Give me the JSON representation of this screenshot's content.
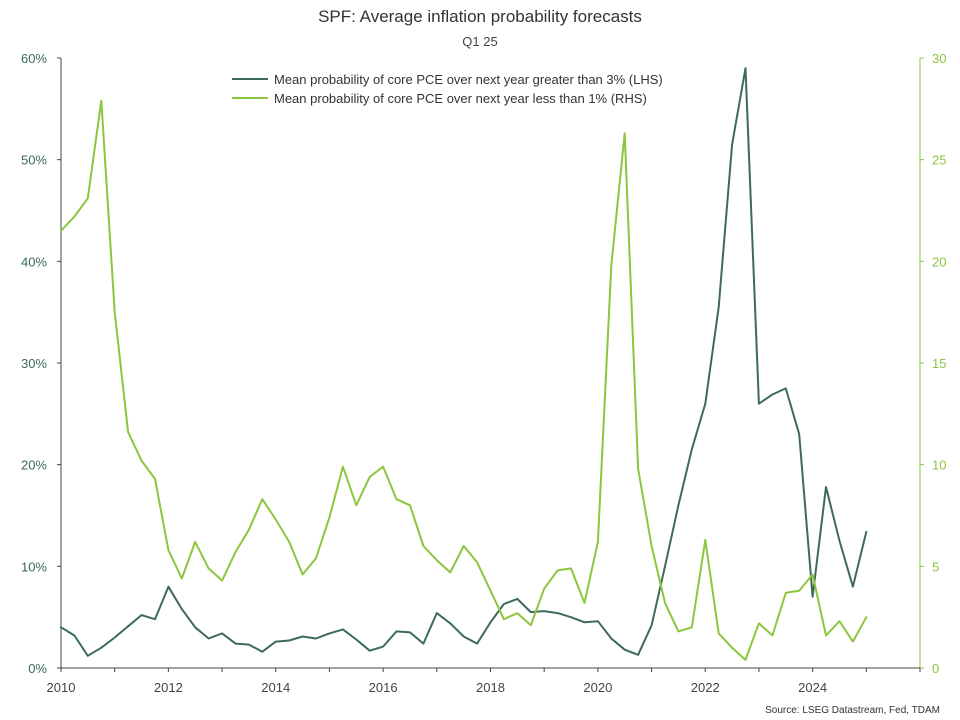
{
  "chart_data": {
    "type": "line",
    "title": "SPF: Average inflation probability forecasts",
    "subtitle": "Q1 25",
    "source": "Source: LSEG Datastream, Fed, TDAM",
    "xlim": [
      2010,
      2026
    ],
    "x_ticks": [
      "2010",
      "2012",
      "2014",
      "2016",
      "2018",
      "2020",
      "2022",
      "2024"
    ],
    "y_left": {
      "ylim": [
        0,
        60
      ],
      "ticks": [
        "0%",
        "10%",
        "20%",
        "30%",
        "40%",
        "50%",
        "60%"
      ],
      "color": "#3a6b5a"
    },
    "y_right": {
      "ylim": [
        0,
        30
      ],
      "ticks": [
        "0",
        "5",
        "10",
        "15",
        "20",
        "25",
        "30"
      ],
      "color": "#8cc63f"
    },
    "grid": false,
    "legend_position": "top-center",
    "series": [
      {
        "name": "Mean probability of core PCE over next year greater than 3% (LHS)",
        "axis": "left",
        "color": "#3d6b58",
        "x": [
          2010.0,
          2010.25,
          2010.5,
          2010.75,
          2011.0,
          2011.25,
          2011.5,
          2011.75,
          2012.0,
          2012.25,
          2012.5,
          2012.75,
          2013.0,
          2013.25,
          2013.5,
          2013.75,
          2014.0,
          2014.25,
          2014.5,
          2014.75,
          2015.0,
          2015.25,
          2015.5,
          2015.75,
          2016.0,
          2016.25,
          2016.5,
          2016.75,
          2017.0,
          2017.25,
          2017.5,
          2017.75,
          2018.0,
          2018.25,
          2018.5,
          2018.75,
          2019.0,
          2019.25,
          2019.5,
          2019.75,
          2020.0,
          2020.25,
          2020.5,
          2020.75,
          2021.0,
          2021.25,
          2021.5,
          2021.75,
          2022.0,
          2022.25,
          2022.5,
          2022.75,
          2023.0,
          2023.25,
          2023.5,
          2023.75,
          2024.0,
          2024.25,
          2024.5,
          2024.75,
          2025.0
        ],
        "values": [
          4.0,
          3.2,
          1.2,
          2.0,
          3.0,
          4.1,
          5.2,
          4.8,
          8.0,
          5.8,
          4.0,
          2.9,
          3.4,
          2.4,
          2.3,
          1.6,
          2.6,
          2.7,
          3.1,
          2.9,
          3.4,
          3.8,
          2.8,
          1.7,
          2.1,
          3.6,
          3.5,
          2.4,
          5.4,
          4.4,
          3.1,
          2.4,
          4.5,
          6.3,
          6.8,
          5.5,
          5.6,
          5.4,
          5.0,
          4.5,
          4.6,
          2.9,
          1.8,
          1.3,
          4.2,
          10.0,
          16.0,
          21.5,
          26.0,
          35.5,
          51.5,
          59.0,
          26.0,
          26.9,
          27.5,
          23.0,
          7.0,
          17.8,
          12.5,
          8.0,
          13.4
        ]
      },
      {
        "name": "Mean probability of core PCE over next year less than 1% (RHS)",
        "axis": "right",
        "color": "#8cc63f",
        "x": [
          2010.0,
          2010.25,
          2010.5,
          2010.75,
          2011.0,
          2011.25,
          2011.5,
          2011.75,
          2012.0,
          2012.25,
          2012.5,
          2012.75,
          2013.0,
          2013.25,
          2013.5,
          2013.75,
          2014.0,
          2014.25,
          2014.5,
          2014.75,
          2015.0,
          2015.25,
          2015.5,
          2015.75,
          2016.0,
          2016.25,
          2016.5,
          2016.75,
          2017.0,
          2017.25,
          2017.5,
          2017.75,
          2018.0,
          2018.25,
          2018.5,
          2018.75,
          2019.0,
          2019.25,
          2019.5,
          2019.75,
          2020.0,
          2020.25,
          2020.5,
          2020.75,
          2021.0,
          2021.25,
          2021.5,
          2021.75,
          2022.0,
          2022.25,
          2022.5,
          2022.75,
          2023.0,
          2023.25,
          2023.5,
          2023.75,
          2024.0,
          2024.25,
          2024.5,
          2024.75,
          2025.0
        ],
        "values": [
          21.5,
          22.2,
          23.1,
          27.9,
          17.5,
          11.6,
          10.2,
          9.3,
          5.8,
          4.4,
          6.2,
          4.9,
          4.3,
          5.7,
          6.8,
          8.3,
          7.3,
          6.2,
          4.6,
          5.4,
          7.4,
          9.9,
          8.0,
          9.4,
          9.9,
          8.3,
          8.0,
          6.0,
          5.3,
          4.7,
          6.0,
          5.2,
          3.8,
          2.4,
          2.7,
          2.1,
          3.9,
          4.8,
          4.9,
          3.2,
          6.2,
          19.8,
          26.3,
          9.8,
          6.0,
          3.2,
          1.8,
          2.0,
          6.3,
          1.7,
          1.0,
          0.4,
          2.2,
          1.6,
          3.7,
          3.8,
          4.6,
          1.6,
          2.3,
          1.3,
          2.5
        ]
      }
    ]
  }
}
